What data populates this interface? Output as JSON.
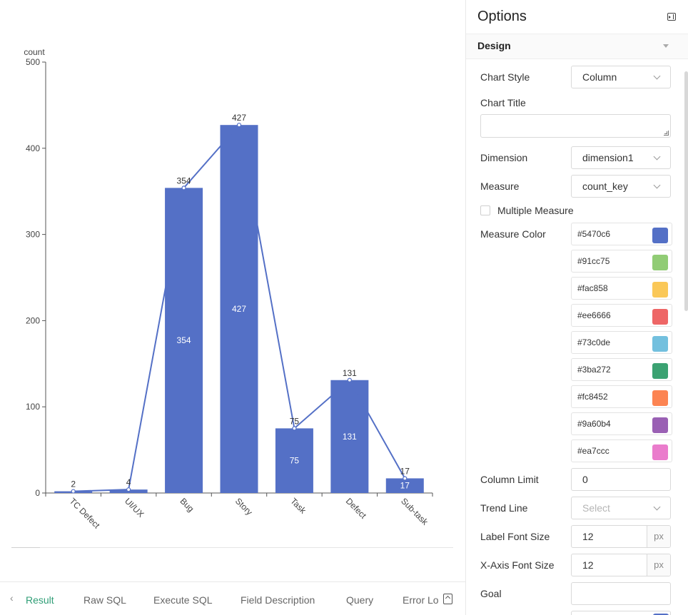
{
  "chart": {
    "y_axis_name": "count"
  },
  "chart_data": {
    "type": "bar",
    "categories": [
      "TC Defect",
      "UI/UX",
      "Bug",
      "Story",
      "Task",
      "Defect",
      "Sub-task"
    ],
    "series": [
      {
        "values": [
          2,
          4,
          354,
          427,
          75,
          131,
          17
        ]
      }
    ],
    "trend_line": [
      2,
      4,
      354,
      427,
      75,
      131,
      17
    ],
    "ylabel": "count",
    "ylim": [
      0,
      500
    ],
    "yticks": [
      0,
      100,
      200,
      300,
      400,
      500
    ],
    "grid": false,
    "color": "#5470c6"
  },
  "tabs": {
    "items": [
      "Result",
      "Raw SQL",
      "Execute SQL",
      "Field Description",
      "Query",
      "Error Lo"
    ],
    "active": "Result",
    "prev_icon": "chevron-left-icon",
    "next_icon": "scroll-right-icon"
  },
  "options": {
    "title": "Options",
    "collapse_icon": "panel-collapse-icon",
    "section_title": "Design",
    "chart_style_label": "Chart Style",
    "chart_style_value": "Column",
    "chart_title_label": "Chart Title",
    "chart_title_value": "",
    "dimension_label": "Dimension",
    "dimension_value": "dimension1",
    "measure_label": "Measure",
    "measure_value": "count_key",
    "multiple_measure_label": "Multiple Measure",
    "multiple_measure_checked": false,
    "measure_color_label": "Measure Color",
    "measure_colors": [
      "#5470c6",
      "#91cc75",
      "#fac858",
      "#ee6666",
      "#73c0de",
      "#3ba272",
      "#fc8452",
      "#9a60b4",
      "#ea7ccc"
    ],
    "column_limit_label": "Column Limit",
    "column_limit_value": "0",
    "trend_line_label": "Trend Line",
    "trend_line_placeholder": "Select",
    "label_font_size_label": "Label Font Size",
    "label_font_size_value": "12",
    "x_axis_font_size_label": "X-Axis Font Size",
    "x_axis_font_size_value": "12",
    "font_unit": "px",
    "goal_label": "Goal",
    "goal_value": ""
  }
}
